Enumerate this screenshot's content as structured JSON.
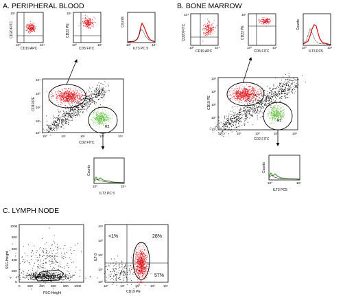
{
  "panels": [
    {
      "key": "A",
      "title": "A.  PERIPHERAL BLOOD"
    },
    {
      "key": "B",
      "title": "B.  BONE MARROW"
    },
    {
      "key": "C",
      "title": "C.  LYMPH NODE"
    }
  ],
  "ticks": {
    "log": [
      "10⁰",
      "10¹",
      "10²",
      "10³",
      "10⁴"
    ],
    "linear": [
      "0",
      "200",
      "400",
      "600",
      "800",
      "1000"
    ]
  },
  "labels": {
    "cd19_apc": "CD19 APC",
    "cd20_fitc": "CD20 FITC",
    "cd5_fitc": "CD5 FITC",
    "cd23_pe": "CD23 PE",
    "ilt3_pc5_a": "ILT3 PC 5",
    "ilt3_pc5_b": "ILT3 PC5",
    "counts": "Counts",
    "cd19_pe": "CD19 PE",
    "cd2_fitc": "CD2 FITC",
    "gate_r2": "R2",
    "ssc": "SSC-Height",
    "fsc": "FSC-Height",
    "ilt3": "ILT-3"
  },
  "quadrant_percentages": {
    "upper_left": "<1%",
    "upper_right": "28%",
    "lower_right": "57%"
  },
  "colors": {
    "red_population": "#e0141c",
    "green_population": "#6cc04a",
    "gated_black": "#111111"
  }
}
